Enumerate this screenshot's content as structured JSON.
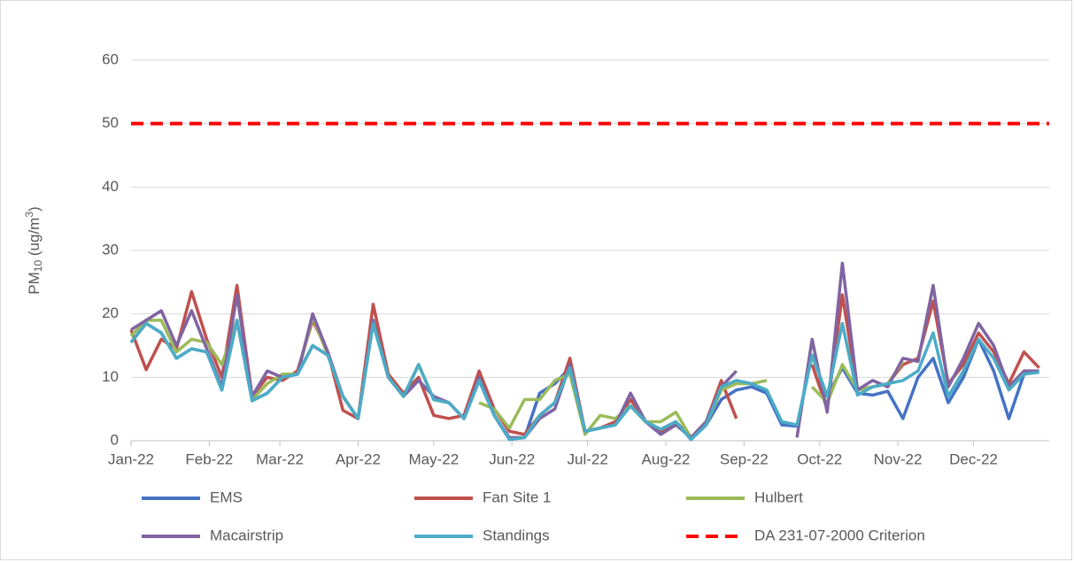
{
  "chart_data": {
    "type": "line",
    "y_label_parts": [
      "PM",
      "10",
      " (ug/m",
      "3",
      ")"
    ],
    "x": [
      0,
      6,
      12,
      18,
      24,
      30,
      36,
      42,
      48,
      54,
      60,
      66,
      72,
      78,
      84,
      90,
      96,
      102,
      108,
      114,
      120,
      126,
      132,
      138,
      144,
      150,
      156,
      162,
      168,
      174,
      180,
      186,
      192,
      198,
      204,
      210,
      216,
      222,
      228,
      234,
      240,
      246,
      252,
      258,
      264,
      270,
      276,
      282,
      288,
      294,
      300,
      306,
      312,
      318,
      324,
      330,
      336,
      342,
      348,
      354,
      360
    ],
    "xlim": [
      0,
      364
    ],
    "xticks": [
      {
        "value": 0,
        "label": "Jan-22"
      },
      {
        "value": 31,
        "label": "Feb-22"
      },
      {
        "value": 59,
        "label": "Mar-22"
      },
      {
        "value": 90,
        "label": "Apr-22"
      },
      {
        "value": 120,
        "label": "May-22"
      },
      {
        "value": 151,
        "label": "Jun-22"
      },
      {
        "value": 181,
        "label": "Jul-22"
      },
      {
        "value": 212,
        "label": "Aug-22"
      },
      {
        "value": 243,
        "label": "Sep-22"
      },
      {
        "value": 273,
        "label": "Oct-22"
      },
      {
        "value": 304,
        "label": "Nov-22"
      },
      {
        "value": 334,
        "label": "Dec-22"
      }
    ],
    "ylim": [
      0,
      60
    ],
    "yticks": [
      0,
      10,
      20,
      30,
      40,
      50,
      60
    ],
    "grid": true,
    "legend": "bottom",
    "series": [
      {
        "name": "EMS",
        "color": "#4472c4",
        "values": [
          15.5,
          18.5,
          17,
          13,
          14.5,
          14,
          8,
          19,
          6.3,
          7.5,
          10,
          10.5,
          15,
          13.5,
          7,
          3.5,
          18.5,
          10,
          7,
          12,
          6.5,
          6,
          3.5,
          9.5,
          4,
          0.2,
          0.5,
          7.5,
          9,
          11.5,
          1.5,
          2,
          2.5,
          5.5,
          3,
          1.8,
          3,
          0.2,
          2.5,
          6.5,
          8,
          8.5,
          7.5,
          2.5,
          2.3,
          13.5,
          7,
          11.5,
          7.5,
          7.2,
          7.8,
          3.5,
          10,
          13,
          6,
          10,
          16,
          11,
          3.5,
          10.5,
          11
        ]
      },
      {
        "name": "Fan Site 1",
        "color": "#c0504d",
        "values": [
          17.5,
          11.2,
          16,
          14.5,
          23.5,
          16,
          10,
          24.5,
          7,
          10,
          9.5,
          11,
          19,
          14,
          4.8,
          3.5,
          21.5,
          10.5,
          7.5,
          10,
          4,
          3.5,
          4,
          11,
          5,
          1.5,
          1,
          4,
          6,
          13,
          1.5,
          2,
          3,
          6.5,
          3,
          1.5,
          3,
          0.5,
          3,
          9.5,
          3.5,
          null,
          null,
          null,
          null,
          12,
          5,
          23,
          8,
          8.5,
          9,
          12,
          13,
          22,
          9,
          12,
          17,
          14,
          9,
          14,
          11.5
        ]
      },
      {
        "name": "Hulbert",
        "color": "#9bbb59",
        "values": [
          16.5,
          19,
          19,
          14,
          16,
          15.5,
          12,
          19,
          6.5,
          9,
          10.5,
          10.5,
          19.5,
          13.5,
          7,
          3.5,
          19,
          10,
          7,
          12,
          6.5,
          6,
          null,
          6,
          5,
          2,
          6.5,
          6.5,
          9.5,
          10.5,
          1,
          4,
          3.5,
          5.5,
          3,
          3,
          4.5,
          0.5,
          2.5,
          8,
          9,
          9,
          9.5,
          null,
          null,
          8.5,
          6,
          12,
          8,
          8.5,
          9,
          12.5,
          null,
          null,
          null,
          null,
          null,
          null,
          null,
          null,
          null
        ]
      },
      {
        "name": "Macairstrip",
        "color": "#8064a2",
        "values": [
          17.5,
          19,
          20.5,
          15,
          20.5,
          14.5,
          8.5,
          23,
          7,
          11,
          10,
          10.5,
          20,
          14,
          7,
          3.5,
          19,
          10,
          7,
          9.5,
          7,
          6,
          3.5,
          10,
          4,
          0.5,
          0.5,
          3.5,
          5,
          12,
          1.5,
          2,
          2.5,
          7.5,
          3,
          1,
          2.5,
          0.5,
          3,
          8.5,
          11,
          null,
          null,
          null,
          0.5,
          16,
          4.5,
          28,
          8,
          9.5,
          8.5,
          13,
          12.5,
          24.5,
          8.5,
          13,
          18.5,
          15,
          8.5,
          11,
          11
        ]
      },
      {
        "name": "Standings",
        "color": "#4bacc6",
        "values": [
          15.5,
          18.5,
          17,
          13,
          14.5,
          14,
          8,
          19,
          6.3,
          7.5,
          10,
          10.5,
          15,
          13.5,
          7,
          3.5,
          18.5,
          10,
          7,
          12,
          6.5,
          6,
          3.5,
          9.5,
          4,
          0.2,
          0.5,
          4,
          6,
          11.5,
          1.5,
          2,
          2.5,
          5.5,
          3,
          1.8,
          3,
          0.2,
          2.5,
          8.5,
          9.5,
          9,
          8,
          3,
          2.5,
          13.5,
          7,
          18.5,
          7.2,
          8.5,
          9,
          9.5,
          11,
          17,
          7,
          11,
          16,
          13,
          8,
          10.5,
          10.8
        ]
      }
    ],
    "reference_lines": [
      {
        "name": "DA 231-07-2000 Criterion",
        "value": 50,
        "color": "#ff0000"
      }
    ]
  }
}
